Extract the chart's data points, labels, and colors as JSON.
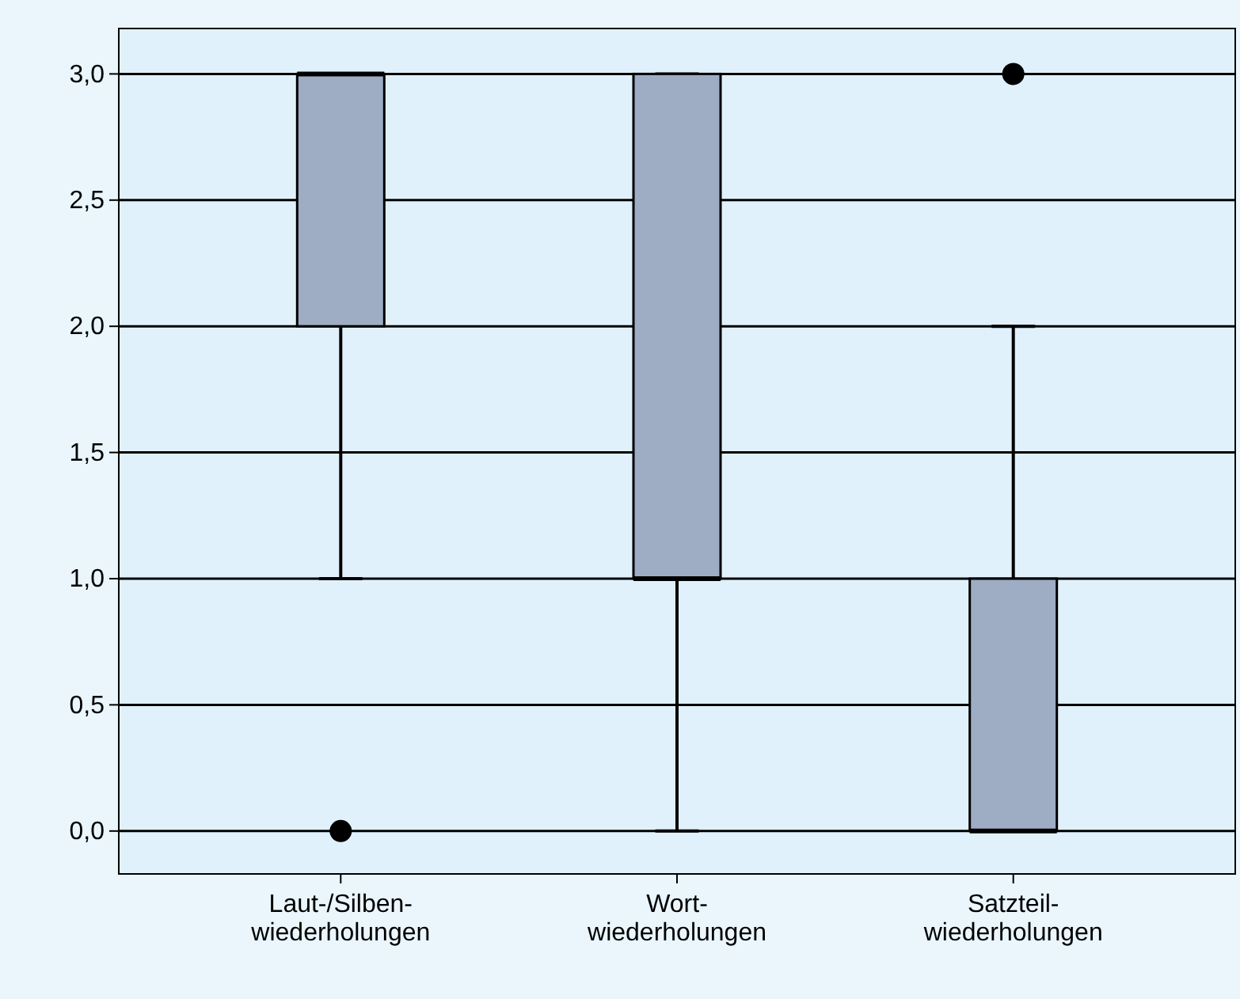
{
  "chart_data": {
    "type": "box",
    "categories": [
      "Laut-/Silben-\nwiederholungen",
      "Wort-\nwiederholungen",
      "Satzteil-\nwiederholungen"
    ],
    "boxes": [
      {
        "low": 1,
        "q1": 2,
        "median": 3,
        "q3": 3,
        "high": 3,
        "outliers": [
          0
        ]
      },
      {
        "low": 0,
        "q1": 1,
        "median": 1,
        "q3": 3,
        "high": 3
      },
      {
        "low": 0,
        "q1": 0,
        "median": 0,
        "q3": 1,
        "high": 2,
        "outliers": [
          3
        ]
      }
    ],
    "color": "#9eacc4",
    "ylim": [
      -0.17,
      3.18
    ],
    "yticks": [
      {
        "value": 0,
        "label": "0,0"
      },
      {
        "value": 0.5,
        "label": "0,5"
      },
      {
        "value": 1,
        "label": "1,0"
      },
      {
        "value": 1.5,
        "label": "1,5"
      },
      {
        "value": 2,
        "label": "2,0"
      },
      {
        "value": 2.5,
        "label": "2,5"
      },
      {
        "value": 3,
        "label": "3,0"
      }
    ],
    "grid": "y"
  }
}
